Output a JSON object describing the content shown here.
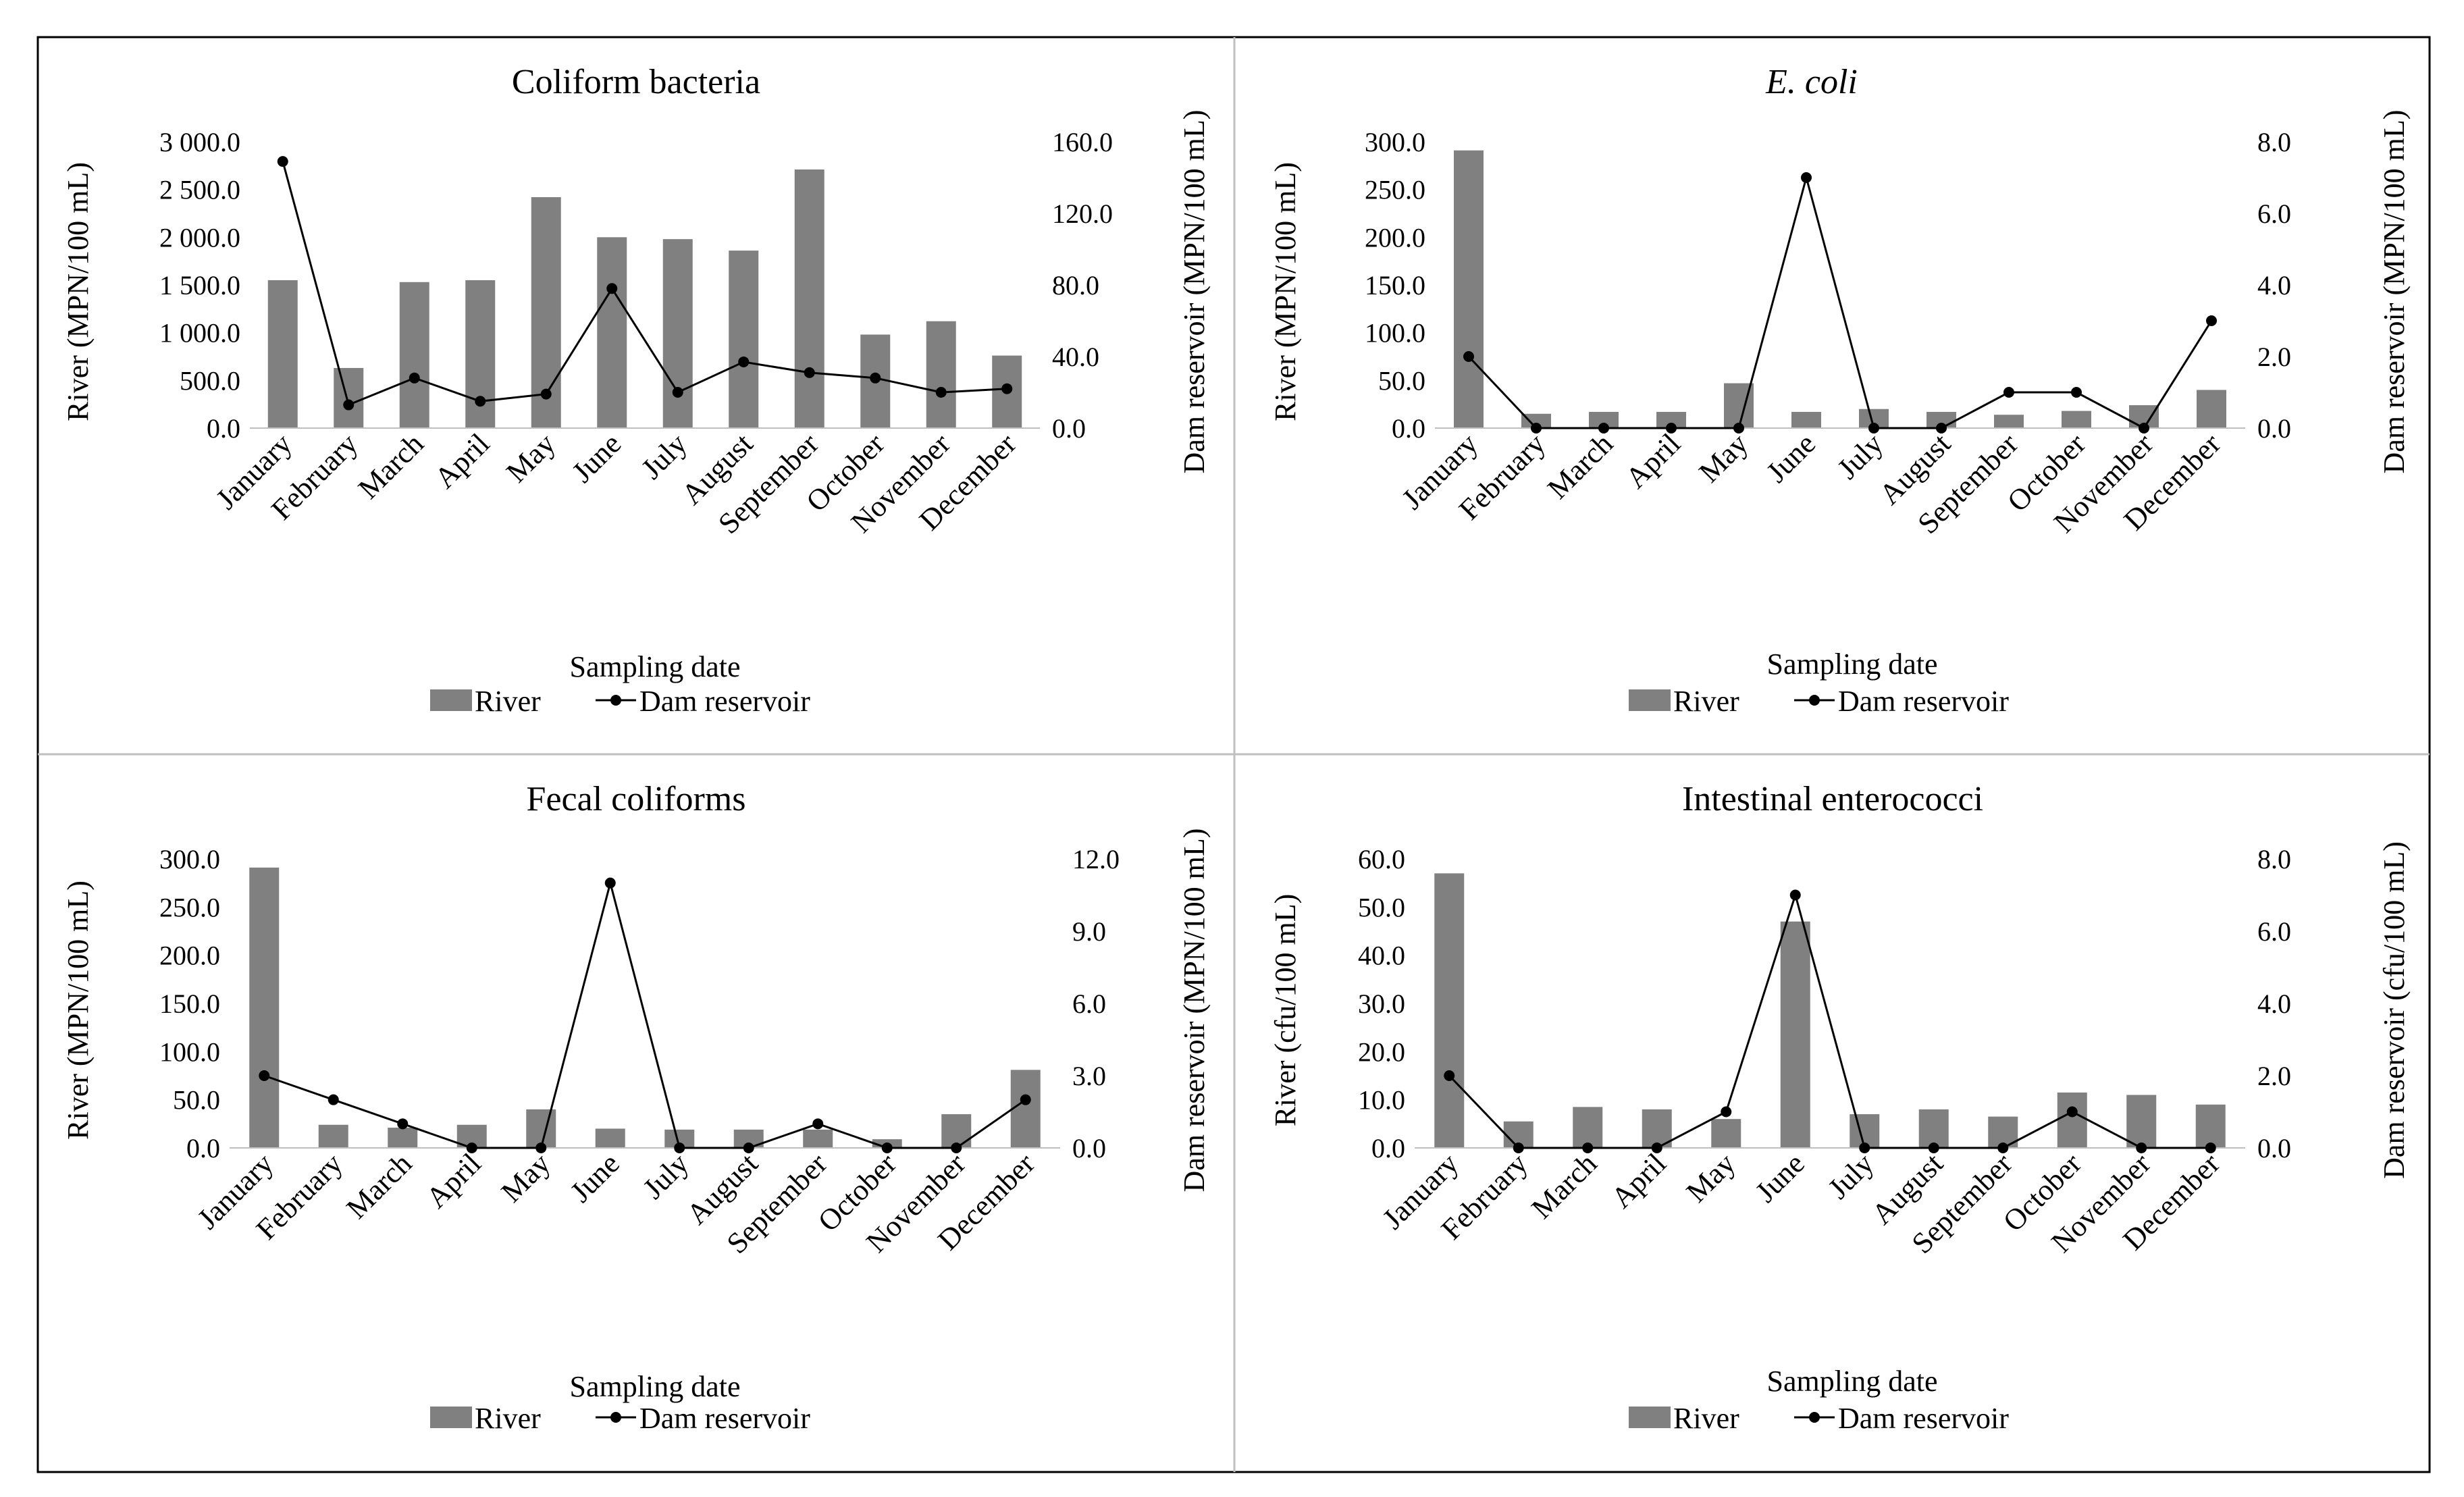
{
  "figure": {
    "colors": {
      "bar": "#808080",
      "line": "#000000",
      "border": "#000000",
      "divider": "#bfbfbf"
    }
  },
  "chart_data": [
    {
      "type": "bar",
      "title": "Coliform bacteria",
      "italic_title": false,
      "categories": [
        "January",
        "February",
        "March",
        "April",
        "May",
        "June",
        "July",
        "August",
        "September",
        "October",
        "November",
        "December"
      ],
      "xlabel": "Sampling date",
      "ylabel": "River (MPN/100 mL)",
      "y2label": "Dam reservoir (MPN/100 mL)",
      "ylim": [
        0,
        3000
      ],
      "yticks": [
        "0.0",
        "500.0",
        "1 000.0",
        "1 500.0",
        "2 000.0",
        "2 500.0",
        "3 000.0"
      ],
      "y2lim": [
        0,
        160
      ],
      "y2ticks": [
        "0.0",
        "40.0",
        "80.0",
        "120.0",
        "160.0"
      ],
      "series": [
        {
          "name": "River",
          "type": "bar",
          "axis": "left",
          "values": [
            1550,
            630,
            1530,
            1550,
            2420,
            2000,
            1980,
            1860,
            2710,
            980,
            1120,
            760
          ]
        },
        {
          "name": "Dam reservoir",
          "type": "line",
          "axis": "right",
          "values": [
            149,
            13,
            28,
            15,
            19,
            78,
            20,
            37,
            31,
            28,
            20,
            22
          ]
        }
      ],
      "legend": "bottom"
    },
    {
      "type": "bar",
      "title": "E. coli",
      "italic_title": true,
      "categories": [
        "January",
        "February",
        "March",
        "April",
        "May",
        "June",
        "July",
        "August",
        "September",
        "October",
        "November",
        "December"
      ],
      "xlabel": "Sampling date",
      "ylabel": "River (MPN/100 mL)",
      "y2label": "Dam reservoir (MPN/100 mL)",
      "ylim": [
        0,
        300
      ],
      "yticks": [
        "0.0",
        "50.0",
        "100.0",
        "150.0",
        "200.0",
        "250.0",
        "300.0"
      ],
      "y2lim": [
        0,
        8
      ],
      "y2ticks": [
        "0.0",
        "2.0",
        "4.0",
        "6.0",
        "8.0"
      ],
      "series": [
        {
          "name": "River",
          "type": "bar",
          "axis": "left",
          "values": [
            291,
            15,
            17,
            17,
            47,
            17,
            20,
            17,
            14,
            18,
            24,
            40
          ]
        },
        {
          "name": "Dam reservoir",
          "type": "line",
          "axis": "right",
          "values": [
            2,
            0,
            0,
            0,
            0,
            7,
            0,
            0,
            1,
            1,
            0,
            3
          ]
        }
      ],
      "legend": "bottom"
    },
    {
      "type": "bar",
      "title": "Fecal coliforms",
      "italic_title": false,
      "categories": [
        "January",
        "February",
        "March",
        "April",
        "May",
        "June",
        "July",
        "August",
        "September",
        "October",
        "November",
        "December"
      ],
      "xlabel": "Sampling date",
      "ylabel": "River (MPN/100 mL)",
      "y2label": "Dam reservoir (MPN/100 mL)",
      "ylim": [
        0,
        300
      ],
      "yticks": [
        "0.0",
        "50.0",
        "100.0",
        "150.0",
        "200.0",
        "250.0",
        "300.0"
      ],
      "y2lim": [
        0,
        12
      ],
      "y2ticks": [
        "0.0",
        "3.0",
        "6.0",
        "9.0",
        "12.0"
      ],
      "series": [
        {
          "name": "River",
          "type": "bar",
          "axis": "left",
          "values": [
            291,
            24,
            21,
            24,
            40,
            20,
            19,
            19,
            19,
            9,
            35,
            81
          ]
        },
        {
          "name": "Dam reservoir",
          "type": "line",
          "axis": "right",
          "values": [
            3,
            2,
            1,
            0,
            0,
            11,
            0,
            0,
            1,
            0,
            0,
            2
          ]
        }
      ],
      "legend": "bottom"
    },
    {
      "type": "bar",
      "title": "Intestinal enterococci",
      "italic_title": false,
      "categories": [
        "January",
        "February",
        "March",
        "April",
        "May",
        "June",
        "July",
        "August",
        "September",
        "October",
        "November",
        "December"
      ],
      "xlabel": "Sampling date",
      "ylabel": "River (cfu/100 mL)",
      "y2label": "Dam reservoir (cfu/100 mL)",
      "ylim": [
        0,
        60
      ],
      "yticks": [
        "0.0",
        "10.0",
        "20.0",
        "30.0",
        "40.0",
        "50.0",
        "60.0"
      ],
      "y2lim": [
        0,
        8
      ],
      "y2ticks": [
        "0.0",
        "2.0",
        "4.0",
        "6.0",
        "8.0"
      ],
      "series": [
        {
          "name": "River",
          "type": "bar",
          "axis": "left",
          "values": [
            57,
            5.5,
            8.5,
            8,
            6,
            47,
            7,
            8,
            6.5,
            11.5,
            11,
            9
          ]
        },
        {
          "name": "Dam reservoir",
          "type": "line",
          "axis": "right",
          "values": [
            2,
            0,
            0,
            0,
            1,
            7,
            0,
            0,
            0,
            1,
            0,
            0
          ]
        }
      ],
      "legend": "bottom"
    }
  ]
}
